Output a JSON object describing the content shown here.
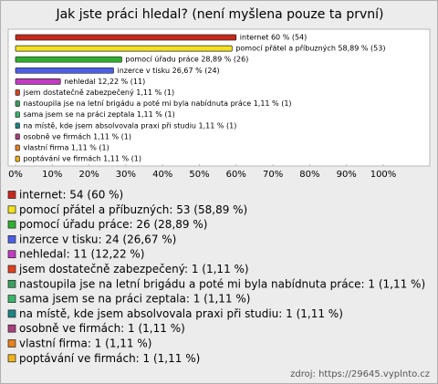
{
  "chart_data": {
    "type": "bar",
    "orientation": "horizontal",
    "title": "Jak jste práci hledal? (není myšlena pouze ta první)",
    "categories": [
      "internet",
      "pomocí přátel a příbuzných",
      "pomocí úřadu práce",
      "inzerce v tisku",
      "nehledal",
      "jsem dostatečně zabezpečený",
      "nastoupila jse na letní brigádu a poté mi byla nabídnuta práce",
      "sama jsem se na práci zeptala",
      "na místě, kde jsem absolvovala praxi při studiu",
      "osobně ve firmách",
      "vlastní firma",
      "poptávání ve firmách"
    ],
    "values": [
      60,
      58.89,
      28.89,
      26.67,
      12.22,
      1.11,
      1.11,
      1.11,
      1.11,
      1.11,
      1.11,
      1.11
    ],
    "value_labels": [
      "internet 60 % (54)",
      "pomocí přátel a příbuzných 58,89 % (53)",
      "pomocí úřadu práce 28,89 % (26)",
      "inzerce v tisku 26,67 % (24)",
      "nehledal 12,22 % (11)",
      "jsem dostatečně zabezpečený 1,11 % (1)",
      "nastoupila jse na letní brigádu a poté mi byla nabídnuta práce 1,11 % (1)",
      "sama jsem se na práci zeptala 1,11 % (1)",
      "na místě, kde jsem absolvovala praxi při studiu 1,11 % (1)",
      "osobně ve firmách 1,11 % (1)",
      "vlastní firma 1,11 % (1)",
      "poptávání ve firmách 1,11 % (1)"
    ],
    "legend_labels": [
      "internet: 54 (60 %)",
      "pomocí přátel a příbuzných: 53 (58,89 %)",
      "pomocí úřadu práce: 26 (28,89 %)",
      "inzerce v tisku: 24 (26,67 %)",
      "nehledal: 11 (12,22 %)",
      "jsem dostatečně zabezpečený: 1 (1,11 %)",
      "nastoupila jse na letní brigádu a poté mi byla nabídnuta práce: 1 (1,11 %)",
      "sama jsem se na práci zeptala: 1 (1,11 %)",
      "na místě, kde jsem absolvovala praxi při studiu: 1 (1,11 %)",
      "osobně ve firmách: 1 (1,11 %)",
      "vlastní firma: 1 (1,11 %)",
      "poptávání ve firmách: 1 (1,11 %)"
    ],
    "colors": [
      "#c8281c",
      "#f2e21e",
      "#2eb02e",
      "#4c5ee6",
      "#c23cc2",
      "#e0401e",
      "#3aa060",
      "#3cb46c",
      "#1e8484",
      "#a8407c",
      "#e6821e",
      "#f0b41e"
    ],
    "xlim": [
      0,
      100
    ],
    "xticks": [
      {
        "value": 0,
        "label": "0%"
      },
      {
        "value": 10,
        "label": "10%"
      },
      {
        "value": 20,
        "label": "20%"
      },
      {
        "value": 30,
        "label": "30%"
      },
      {
        "value": 40,
        "label": "40%"
      },
      {
        "value": 50,
        "label": "50%"
      },
      {
        "value": 60,
        "label": "60%"
      },
      {
        "value": 70,
        "label": "70%"
      },
      {
        "value": 80,
        "label": "80%"
      },
      {
        "value": 90,
        "label": "90%"
      },
      {
        "value": 100,
        "label": "100%"
      }
    ],
    "source": "zdroj: https://29645.vyplnto.cz"
  }
}
